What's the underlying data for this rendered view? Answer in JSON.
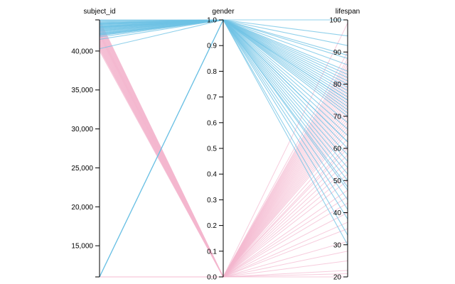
{
  "chart_data": {
    "type": "parallel-coordinates",
    "colors": {
      "gender_0": "#f4b6cf",
      "gender_1": "#6ec1e4",
      "axis": "#000000"
    },
    "axes": [
      {
        "name": "subject_id",
        "label": "subject_id",
        "range": [
          11000,
          44000
        ],
        "ticks": [
          15000,
          20000,
          25000,
          30000,
          35000,
          40000
        ],
        "tick_labels": [
          "15,000",
          "20,000",
          "25,000",
          "30,000",
          "35,000",
          "40,000"
        ]
      },
      {
        "name": "gender",
        "label": "gender",
        "range": [
          0,
          1
        ],
        "ticks": [
          0,
          0.1,
          0.2,
          0.3,
          0.4,
          0.5,
          0.6,
          0.7,
          0.8,
          0.9,
          1
        ],
        "tick_labels": [
          "0.0",
          "0.1",
          "0.2",
          "0.3",
          "0.4",
          "0.5",
          "0.6",
          "0.7",
          "0.8",
          "0.9",
          "1.0"
        ]
      },
      {
        "name": "lifespan",
        "label": "lifespan",
        "range": [
          20,
          100
        ],
        "ticks": [
          20,
          30,
          40,
          50,
          60,
          70,
          80,
          90,
          100
        ],
        "tick_labels": [
          "20",
          "30",
          "40",
          "50",
          "60",
          "70",
          "80",
          "90",
          "100"
        ]
      }
    ],
    "records": [
      [
        11000,
        1,
        100
      ],
      [
        11000,
        1,
        88
      ],
      [
        11000,
        1,
        75
      ],
      [
        11000,
        1,
        62
      ],
      [
        11000,
        1,
        48
      ],
      [
        11000,
        0,
        21
      ],
      [
        11000,
        0,
        22
      ],
      [
        11000,
        0,
        20
      ],
      [
        40300,
        1,
        95
      ],
      [
        41800,
        1,
        92
      ],
      [
        42000,
        1,
        89
      ],
      [
        42200,
        1,
        86
      ],
      [
        42500,
        1,
        84
      ],
      [
        42800,
        1,
        83
      ],
      [
        43000,
        1,
        82
      ],
      [
        43200,
        1,
        81
      ],
      [
        43400,
        1,
        80
      ],
      [
        43600,
        1,
        79
      ],
      [
        43800,
        1,
        78
      ],
      [
        44000,
        1,
        77
      ],
      [
        42000,
        1,
        76
      ],
      [
        42600,
        1,
        75
      ],
      [
        43000,
        1,
        74
      ],
      [
        43500,
        1,
        73
      ],
      [
        41500,
        1,
        72
      ],
      [
        42300,
        1,
        71
      ],
      [
        43100,
        1,
        70
      ],
      [
        43700,
        1,
        68
      ],
      [
        42100,
        1,
        66
      ],
      [
        43300,
        1,
        64
      ],
      [
        42900,
        1,
        62
      ],
      [
        43900,
        1,
        60
      ],
      [
        42400,
        1,
        58
      ],
      [
        43600,
        1,
        56
      ],
      [
        42700,
        1,
        54
      ],
      [
        43200,
        1,
        52
      ],
      [
        42200,
        1,
        50
      ],
      [
        43400,
        1,
        47
      ],
      [
        42800,
        1,
        44
      ],
      [
        43000,
        1,
        41
      ],
      [
        43500,
        1,
        38
      ],
      [
        42600,
        1,
        33
      ],
      [
        43100,
        1,
        30
      ],
      [
        40000,
        0,
        99
      ],
      [
        40500,
        0,
        90
      ],
      [
        41000,
        0,
        88
      ],
      [
        41500,
        0,
        87
      ],
      [
        42000,
        0,
        86
      ],
      [
        42500,
        0,
        85
      ],
      [
        43000,
        0,
        84
      ],
      [
        43500,
        0,
        83
      ],
      [
        44000,
        0,
        82
      ],
      [
        42200,
        0,
        81
      ],
      [
        41200,
        0,
        80
      ],
      [
        42800,
        0,
        79
      ],
      [
        43300,
        0,
        78
      ],
      [
        40800,
        0,
        77
      ],
      [
        42600,
        0,
        76
      ],
      [
        41900,
        0,
        75
      ],
      [
        43700,
        0,
        74
      ],
      [
        42100,
        0,
        73
      ],
      [
        40400,
        0,
        72
      ],
      [
        43100,
        0,
        71
      ],
      [
        42400,
        0,
        70
      ],
      [
        41700,
        0,
        69
      ],
      [
        42900,
        0,
        68
      ],
      [
        40700,
        0,
        67
      ],
      [
        43400,
        0,
        66
      ],
      [
        41300,
        0,
        65
      ],
      [
        42700,
        0,
        63
      ],
      [
        40200,
        0,
        61
      ],
      [
        43800,
        0,
        60
      ],
      [
        41600,
        0,
        58
      ],
      [
        42300,
        0,
        56
      ],
      [
        40900,
        0,
        54
      ],
      [
        43600,
        0,
        52
      ],
      [
        41100,
        0,
        50
      ],
      [
        42000,
        0,
        47
      ],
      [
        40600,
        0,
        45
      ],
      [
        43200,
        0,
        43
      ],
      [
        41400,
        0,
        40
      ],
      [
        42500,
        0,
        37
      ],
      [
        40300,
        0,
        35
      ],
      [
        43900,
        0,
        31
      ],
      [
        41800,
        0,
        28
      ],
      [
        42200,
        0,
        25
      ]
    ]
  }
}
